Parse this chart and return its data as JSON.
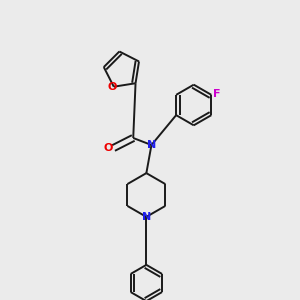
{
  "bg_color": "#ebebeb",
  "bond_color": "#1a1a1a",
  "bond_width": 1.4,
  "N_color": "#2020ee",
  "O_color": "#ee0000",
  "F_color": "#cc00cc",
  "figsize": [
    3.0,
    3.0
  ],
  "dpi": 100,
  "xlim": [
    1.5,
    8.5
  ],
  "ylim": [
    0.2,
    9.8
  ]
}
